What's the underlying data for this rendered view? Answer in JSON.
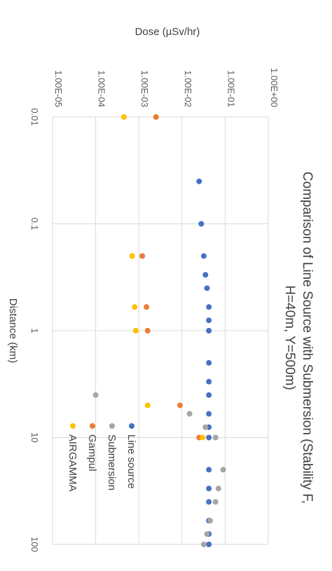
{
  "chart_data": {
    "type": "scatter",
    "title": "Comparison of Line Source with Submersion (Stability F, H=40m, Y=500m)",
    "title_lines": [
      "Comparison of Line Source with Submersion (Stability F,",
      "H=40m, Y=500m)"
    ],
    "xlabel": "Distance (km)",
    "ylabel": "Dose (µSv/hr)",
    "x_scale": "log",
    "y_scale": "log",
    "xlim": [
      0.01,
      100
    ],
    "ylim": [
      1e-05,
      1
    ],
    "x_ticks": [
      0.01,
      0.1,
      1,
      10,
      100
    ],
    "x_tick_labels": [
      "0.01",
      "0.1",
      "1",
      "10",
      "100"
    ],
    "y_ticks": [
      1e-05,
      0.0001,
      0.001,
      0.01,
      0.1,
      1
    ],
    "y_tick_labels": [
      "1.00E-05",
      "1.00E-04",
      "1.00E-03",
      "1.00E-02",
      "1.00E-01",
      "1.00E+00"
    ],
    "orientation": "rotated 90 degrees clockwise",
    "grid": true,
    "legend_position": "bottom-left",
    "series": [
      {
        "name": "Line source",
        "color": "#4472C4",
        "points": [
          [
            0.04,
            0.025
          ],
          [
            0.1,
            0.028
          ],
          [
            0.2,
            0.032
          ],
          [
            0.3,
            0.035
          ],
          [
            0.4,
            0.038
          ],
          [
            0.6,
            0.042
          ],
          [
            0.8,
            0.042
          ],
          [
            1.0,
            0.042
          ],
          [
            2.0,
            0.042
          ],
          [
            3.0,
            0.042
          ],
          [
            4.0,
            0.042
          ],
          [
            6.0,
            0.042
          ],
          [
            8.0,
            0.042
          ],
          [
            10.0,
            0.042
          ],
          [
            20.0,
            0.042
          ],
          [
            30.0,
            0.042
          ],
          [
            40.0,
            0.042
          ],
          [
            60.0,
            0.042
          ],
          [
            80.0,
            0.042
          ],
          [
            100.0,
            0.042
          ]
        ]
      },
      {
        "name": "Submersion",
        "color": "#A5A5A5",
        "points": [
          [
            4.0,
            0.0001
          ],
          [
            6.0,
            0.015
          ],
          [
            8.0,
            0.035
          ],
          [
            10.0,
            0.06
          ],
          [
            20.0,
            0.09
          ],
          [
            30.0,
            0.07
          ],
          [
            40.0,
            0.06
          ],
          [
            60.0,
            0.045
          ],
          [
            80.0,
            0.038
          ],
          [
            100.0,
            0.032
          ]
        ]
      },
      {
        "name": "Gampul",
        "color": "#ED7D31",
        "points": [
          [
            0.01,
            0.0025
          ],
          [
            0.2,
            0.0012
          ],
          [
            0.6,
            0.0015
          ],
          [
            1.0,
            0.0016
          ],
          [
            5.0,
            0.009
          ],
          [
            10.0,
            0.025
          ]
        ]
      },
      {
        "name": "AIRGAMMA",
        "color": "#FFC000",
        "points": [
          [
            0.01,
            0.00045
          ],
          [
            0.2,
            0.0007
          ],
          [
            0.6,
            0.0008
          ],
          [
            1.0,
            0.00085
          ],
          [
            5.0,
            0.0016
          ],
          [
            10.0,
            0.03
          ]
        ]
      }
    ]
  }
}
